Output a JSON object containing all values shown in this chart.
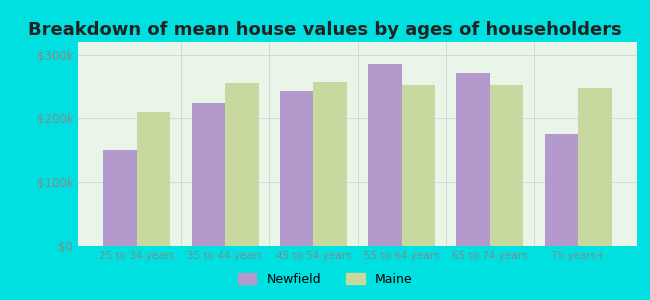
{
  "title": "Breakdown of mean house values by ages of householders",
  "categories": [
    "25 to 34 years",
    "35 to 44 years",
    "45 to 54 years",
    "55 to 64 years",
    "65 to 74 years",
    "75 years+"
  ],
  "newfield_values": [
    150000,
    225000,
    243000,
    285000,
    272000,
    175000
  ],
  "maine_values": [
    210000,
    255000,
    258000,
    253000,
    252000,
    248000
  ],
  "newfield_color": "#b399cc",
  "maine_color": "#c8d9a0",
  "background_color": "#00e0e0",
  "plot_bg_color": "#eaf5ea",
  "ylim": [
    0,
    320000
  ],
  "yticks": [
    0,
    100000,
    200000,
    300000
  ],
  "ytick_labels": [
    "$0",
    "$100k",
    "$200k",
    "$300k"
  ],
  "legend_labels": [
    "Newfield",
    "Maine"
  ],
  "title_fontsize": 13,
  "bar_width": 0.38,
  "grid_color": "#cccccc"
}
